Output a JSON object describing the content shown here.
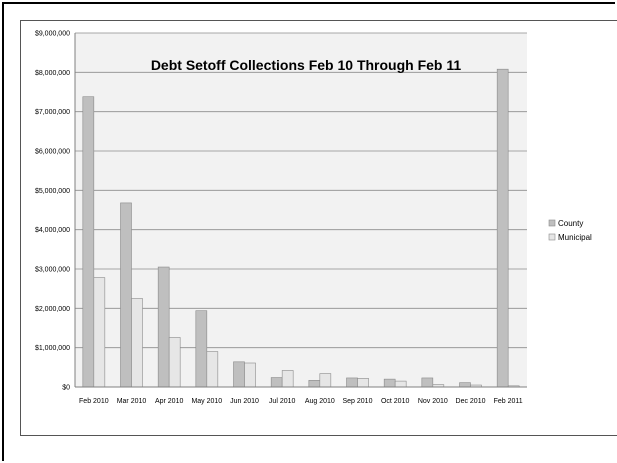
{
  "chart_data": {
    "type": "bar",
    "title": "Debt Setoff Collections Feb 10 Through Feb 11",
    "categories": [
      "Feb 2010",
      "Mar 2010",
      "Apr 2010",
      "May 2010",
      "Jun 2010",
      "Jul 2010",
      "Aug 2010",
      "Sep 2010",
      "Oct 2010",
      "Nov 2010",
      "Dec 2010",
      "Feb 2011"
    ],
    "series": [
      {
        "name": "County",
        "color": "#bfbfbf",
        "values": [
          7380000,
          4680000,
          3050000,
          1940000,
          640000,
          240000,
          170000,
          230000,
          200000,
          230000,
          110000,
          8080000
        ]
      },
      {
        "name": "Municipal",
        "color": "#e6e6e6",
        "values": [
          2780000,
          2250000,
          1260000,
          900000,
          610000,
          420000,
          340000,
          220000,
          150000,
          60000,
          50000,
          30000
        ]
      }
    ],
    "y_ticks": [
      "$0",
      "$1,000,000",
      "$2,000,000",
      "$3,000,000",
      "$4,000,000",
      "$5,000,000",
      "$6,000,000",
      "$7,000,000",
      "$8,000,000",
      "$9,000,000"
    ],
    "ylim": [
      0,
      9000000
    ],
    "grid": true,
    "legend_position": "right"
  }
}
